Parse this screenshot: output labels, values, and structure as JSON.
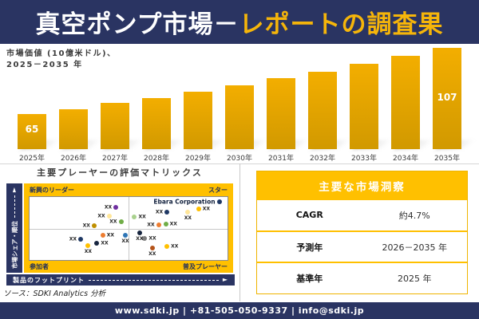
{
  "header": {
    "title_white": "真空ポンプ市場－",
    "title_gold": "レポートの調査果"
  },
  "bar_section": {
    "label_line1": "市場価値 (10億米ドル)、",
    "label_line2": "2025－2035 年"
  },
  "source_note": "ソース：SDKI Analytics 分析",
  "footer": {
    "text": "www.sdki.jp | +81-505-050-9337 | info@sdki.jp"
  },
  "colors": {
    "navy": "#2A3462",
    "gold": "#FFC000",
    "bar_gradient_top": "#F3AE00",
    "bar_gradient_bottom": "#D19900"
  },
  "chart_data": [
    {
      "type": "bar",
      "title": "市場価値 (10億米ドル)、2025－2035年",
      "categories": [
        "2025年",
        "2026年",
        "2027年",
        "2028年",
        "2029年",
        "2030年",
        "2031年",
        "2032年",
        "2033年",
        "2034年",
        "2035年"
      ],
      "values": [
        65,
        68,
        72,
        75,
        79,
        83,
        88,
        92,
        97,
        102,
        107
      ],
      "visible_value_labels": {
        "2025年": "65",
        "2035年": "107"
      },
      "bar_color": "#E9A800",
      "grid": false,
      "legend": "none"
    },
    {
      "type": "scatter",
      "title": "主要プレーヤーの評価マトリックス",
      "xlabel": "製品のフットプリント",
      "ylabel": "市場シェア・順位",
      "arrow_glyph": "►",
      "quadrants": {
        "top_left": "新興のリーダー",
        "top_right": "スター",
        "bottom_left": "参加者",
        "bottom_right": "普及プレーヤー"
      },
      "points": [
        {
          "label": "XX",
          "x_pct": 43.6,
          "y_pct": 16.7,
          "color": "#7030A0",
          "label_pos": "left"
        },
        {
          "label": "XX",
          "x_pct": 40.2,
          "y_pct": 30.9,
          "color": "#FFE699",
          "label_pos": "left"
        },
        {
          "label": "XX",
          "x_pct": 32.6,
          "y_pct": 45.1,
          "color": "#BF8F00",
          "label_pos": "left"
        },
        {
          "label": "XX",
          "x_pct": 46.2,
          "y_pct": 39.5,
          "color": "#70AD47",
          "label_pos": "left"
        },
        {
          "label": "XX",
          "x_pct": 53.0,
          "y_pct": 31.5,
          "color": "#A9D18E",
          "label_pos": "right"
        },
        {
          "label": "XX",
          "x_pct": 69.4,
          "y_pct": 23.5,
          "color": "#1F3864",
          "label_pos": "left"
        },
        {
          "label": "XX",
          "x_pct": 80.0,
          "y_pct": 24.1,
          "color": "#FFE699",
          "label_pos": "below"
        },
        {
          "label": "XX",
          "x_pct": 85.4,
          "y_pct": 18.5,
          "color": "#FFC000",
          "label_pos": "right"
        },
        {
          "label": "XX",
          "x_pct": 65.2,
          "y_pct": 44.4,
          "color": "#ED7D31",
          "label_pos": "left"
        },
        {
          "label": "XX",
          "x_pct": 68.8,
          "y_pct": 43.2,
          "color": "#70AD47",
          "label_pos": "right"
        },
        {
          "label": "Ebara Corporation",
          "x_pct": 95.8,
          "y_pct": 8.0,
          "color": "#1F3864",
          "label_pos": "left",
          "emphasis": true
        },
        {
          "label": "XX",
          "x_pct": 37.0,
          "y_pct": 61.1,
          "color": "#ED7D31",
          "label_pos": "right"
        },
        {
          "label": "XX",
          "x_pct": 48.4,
          "y_pct": 60.9,
          "color": "#2E75B6",
          "label_pos": "below"
        },
        {
          "label": "XX",
          "x_pct": 25.8,
          "y_pct": 67.5,
          "color": "#1F3864",
          "label_pos": "left"
        },
        {
          "label": "XX",
          "x_pct": 34.0,
          "y_pct": 73.2,
          "color": "#17253F",
          "label_pos": "right"
        },
        {
          "label": "XX",
          "x_pct": 29.6,
          "y_pct": 77.4,
          "color": "#FFC000",
          "label_pos": "below"
        },
        {
          "label": "XX",
          "x_pct": 55.6,
          "y_pct": 56.8,
          "color": "#17253F",
          "label_pos": "below"
        },
        {
          "label": "XX",
          "x_pct": 58.2,
          "y_pct": 66.0,
          "color": "#7F7F7F",
          "label_pos": "right"
        },
        {
          "label": "XX",
          "x_pct": 62.0,
          "y_pct": 81.5,
          "color": "#B5541A",
          "label_pos": "below"
        },
        {
          "label": "XX",
          "x_pct": 69.4,
          "y_pct": 78.4,
          "color": "#FFC000",
          "label_pos": "right"
        }
      ]
    },
    {
      "type": "table",
      "title": "主要な市場洞察",
      "rows": [
        [
          "CAGR",
          "約4.7%"
        ],
        [
          "予測年",
          "2026－2035 年"
        ],
        [
          "基準年",
          "2025 年"
        ]
      ]
    }
  ]
}
